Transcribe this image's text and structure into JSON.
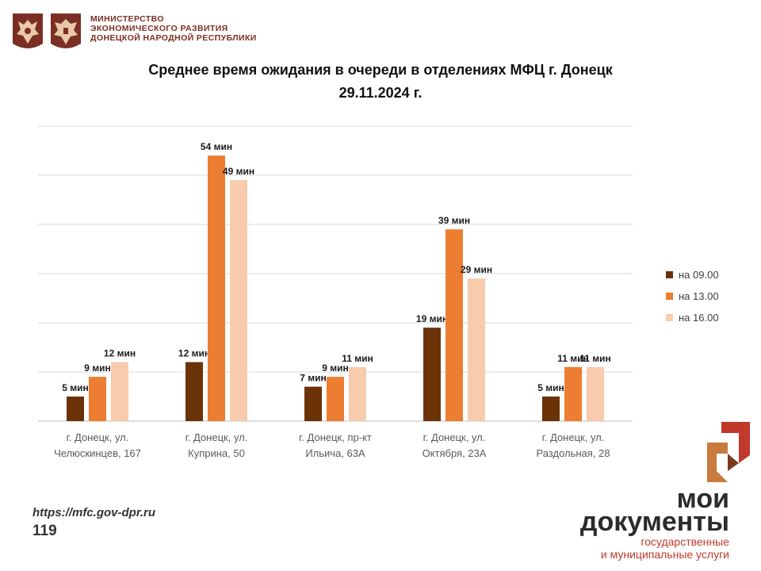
{
  "header": {
    "ministry_lines": [
      "МИНИСТЕРСТВО",
      "ЭКОНОМИЧЕСКОГО РАЗВИТИЯ",
      "ДОНЕЦКОЙ НАРОДНОЙ РЕСПУБЛИКИ"
    ]
  },
  "footer": {
    "url": "https://mfc.gov-dpr.ru",
    "page_number": "119",
    "brand_line1": "мои",
    "brand_line2": "документы",
    "brand_line3": "государственные",
    "brand_line4": "и муниципальные услуги"
  },
  "colors": {
    "series": [
      "#6b3208",
      "#ed7d31",
      "#f7cbac"
    ],
    "grid": "#d9d9d9",
    "brand_red": "#c0392b"
  },
  "chart_data": {
    "type": "bar",
    "title": "Среднее время ожидания в очереди в отделениях МФЦ г. Донецк",
    "subtitle": "29.11.2024 г.",
    "categories": [
      [
        "г. Донецк, ул.",
        "Челюскинцев, 167"
      ],
      [
        "г. Донецк, ул.",
        "Куприна, 50"
      ],
      [
        "г. Донецк, пр-кт",
        "Ильича, 63А"
      ],
      [
        "г. Донецк, ул.",
        "Октября, 23А"
      ],
      [
        "г. Донецк, ул.",
        "Раздольная, 28"
      ]
    ],
    "series": [
      {
        "name": "на 09.00",
        "values": [
          5,
          12,
          7,
          19,
          5
        ],
        "labels": [
          "5 мин",
          "12 мин",
          "7 мин",
          "19 мин",
          "5 мин"
        ]
      },
      {
        "name": "на 13.00",
        "values": [
          9,
          54,
          9,
          39,
          11
        ],
        "labels": [
          "9 мин",
          "54 мин",
          "9 мин",
          "39 мин",
          "11 мин"
        ]
      },
      {
        "name": "на 16.00",
        "values": [
          12,
          49,
          11,
          29,
          11
        ],
        "labels": [
          "12 мин",
          "49 мин",
          "11 мин",
          "29 мин",
          "11 мин"
        ]
      }
    ],
    "ylim": [
      0,
      60
    ],
    "grid": true,
    "legend": "right"
  }
}
